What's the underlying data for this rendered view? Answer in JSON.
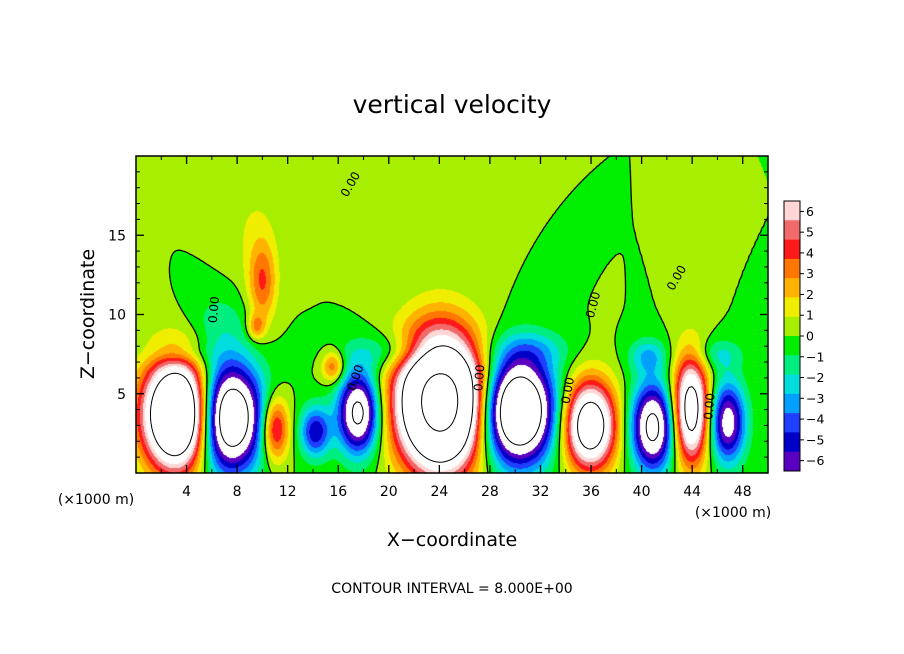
{
  "chart_data": {
    "type": "heatmap",
    "title": "vertical velocity",
    "xlabel": "X−coordinate",
    "ylabel": "Z−coordinate",
    "x_unit": "(×1000 m)",
    "y_unit": "(×1000 m)",
    "footer": "CONTOUR INTERVAL = 8.000E+00",
    "xlim": [
      0,
      50
    ],
    "ylim": [
      0,
      20
    ],
    "x_ticks": [
      "4",
      "8",
      "12",
      "16",
      "20",
      "24",
      "28",
      "32",
      "36",
      "40",
      "44",
      "48"
    ],
    "y_ticks": [
      "5",
      "10",
      "15"
    ],
    "colorbar": {
      "range": [
        -6,
        6
      ],
      "labels": [
        "6",
        "5",
        "4",
        "3",
        "2",
        "1",
        "0",
        "−1",
        "−2",
        "−3",
        "−4",
        "−5",
        "−6"
      ],
      "colors": [
        "#ffd6d6",
        "#f06a6a",
        "#ff1a1a",
        "#ff7700",
        "#ffb300",
        "#f0ee00",
        "#a8ee00",
        "#00ee00",
        "#00ee80",
        "#00dddd",
        "#00a0ff",
        "#1f3fff",
        "#0000c8",
        "#5a00c0"
      ]
    },
    "contour_labels": [
      "0.00",
      "0.00",
      "0.00",
      "0.00",
      "0.00",
      "0.00",
      "0.00",
      "0.00"
    ],
    "blobs": [
      {
        "x": 3.3,
        "z": 3.7,
        "rx": 2.6,
        "rz": 3.3,
        "w": 16
      },
      {
        "x": 7.3,
        "z": 3.5,
        "rx": 2.6,
        "rz": 3.3,
        "w": -12
      },
      {
        "x": 11.0,
        "z": 2.8,
        "rx": 1.1,
        "rz": 2.0,
        "w": 5.5
      },
      {
        "x": 14.2,
        "z": 2.6,
        "rx": 1.2,
        "rz": 1.6,
        "w": -5
      },
      {
        "x": 17.6,
        "z": 3.8,
        "rx": 1.6,
        "rz": 2.5,
        "w": -9
      },
      {
        "x": 24.1,
        "z": 4.5,
        "rx": 3.2,
        "rz": 4.0,
        "w": 20
      },
      {
        "x": 30.2,
        "z": 3.9,
        "rx": 2.8,
        "rz": 3.2,
        "w": -13
      },
      {
        "x": 35.9,
        "z": 3.0,
        "rx": 2.0,
        "rz": 2.7,
        "w": 11
      },
      {
        "x": 40.9,
        "z": 2.9,
        "rx": 1.7,
        "rz": 2.7,
        "w": -9
      },
      {
        "x": 43.9,
        "z": 4.0,
        "rx": 1.4,
        "rz": 3.3,
        "w": 10
      },
      {
        "x": 46.8,
        "z": 3.2,
        "rx": 1.4,
        "rz": 2.5,
        "w": -7
      },
      {
        "x": 10.0,
        "z": 12.0,
        "rx": 1.1,
        "rz": 2.6,
        "w": 3.4
      },
      {
        "x": 9.5,
        "z": 9.2,
        "rx": 0.7,
        "rz": 0.8,
        "w": 2.6
      },
      {
        "x": 15.6,
        "z": 6.7,
        "rx": 0.9,
        "rz": 1.0,
        "w": 3.5
      },
      {
        "x": 9.2,
        "z": 15.5,
        "rx": 2.2,
        "rz": 3.5,
        "w": 0.8
      },
      {
        "x": 21.0,
        "z": 7.6,
        "rx": 4.5,
        "rz": 1.2,
        "w": -2.2
      },
      {
        "x": 6.5,
        "z": 9.5,
        "rx": 2.5,
        "rz": 2.0,
        "w": -1.2
      },
      {
        "x": 31.5,
        "z": 7.8,
        "rx": 3.0,
        "rz": 1.2,
        "w": -1.5
      },
      {
        "x": 46.0,
        "z": 7.5,
        "rx": 2.0,
        "rz": 1.0,
        "w": -1.8
      },
      {
        "x": 3.5,
        "z": 7.5,
        "rx": 2.5,
        "rz": 0.8,
        "w": -1.3
      },
      {
        "x": 40.5,
        "z": 7.4,
        "rx": 1.5,
        "rz": 1.1,
        "w": -2.5
      }
    ]
  }
}
